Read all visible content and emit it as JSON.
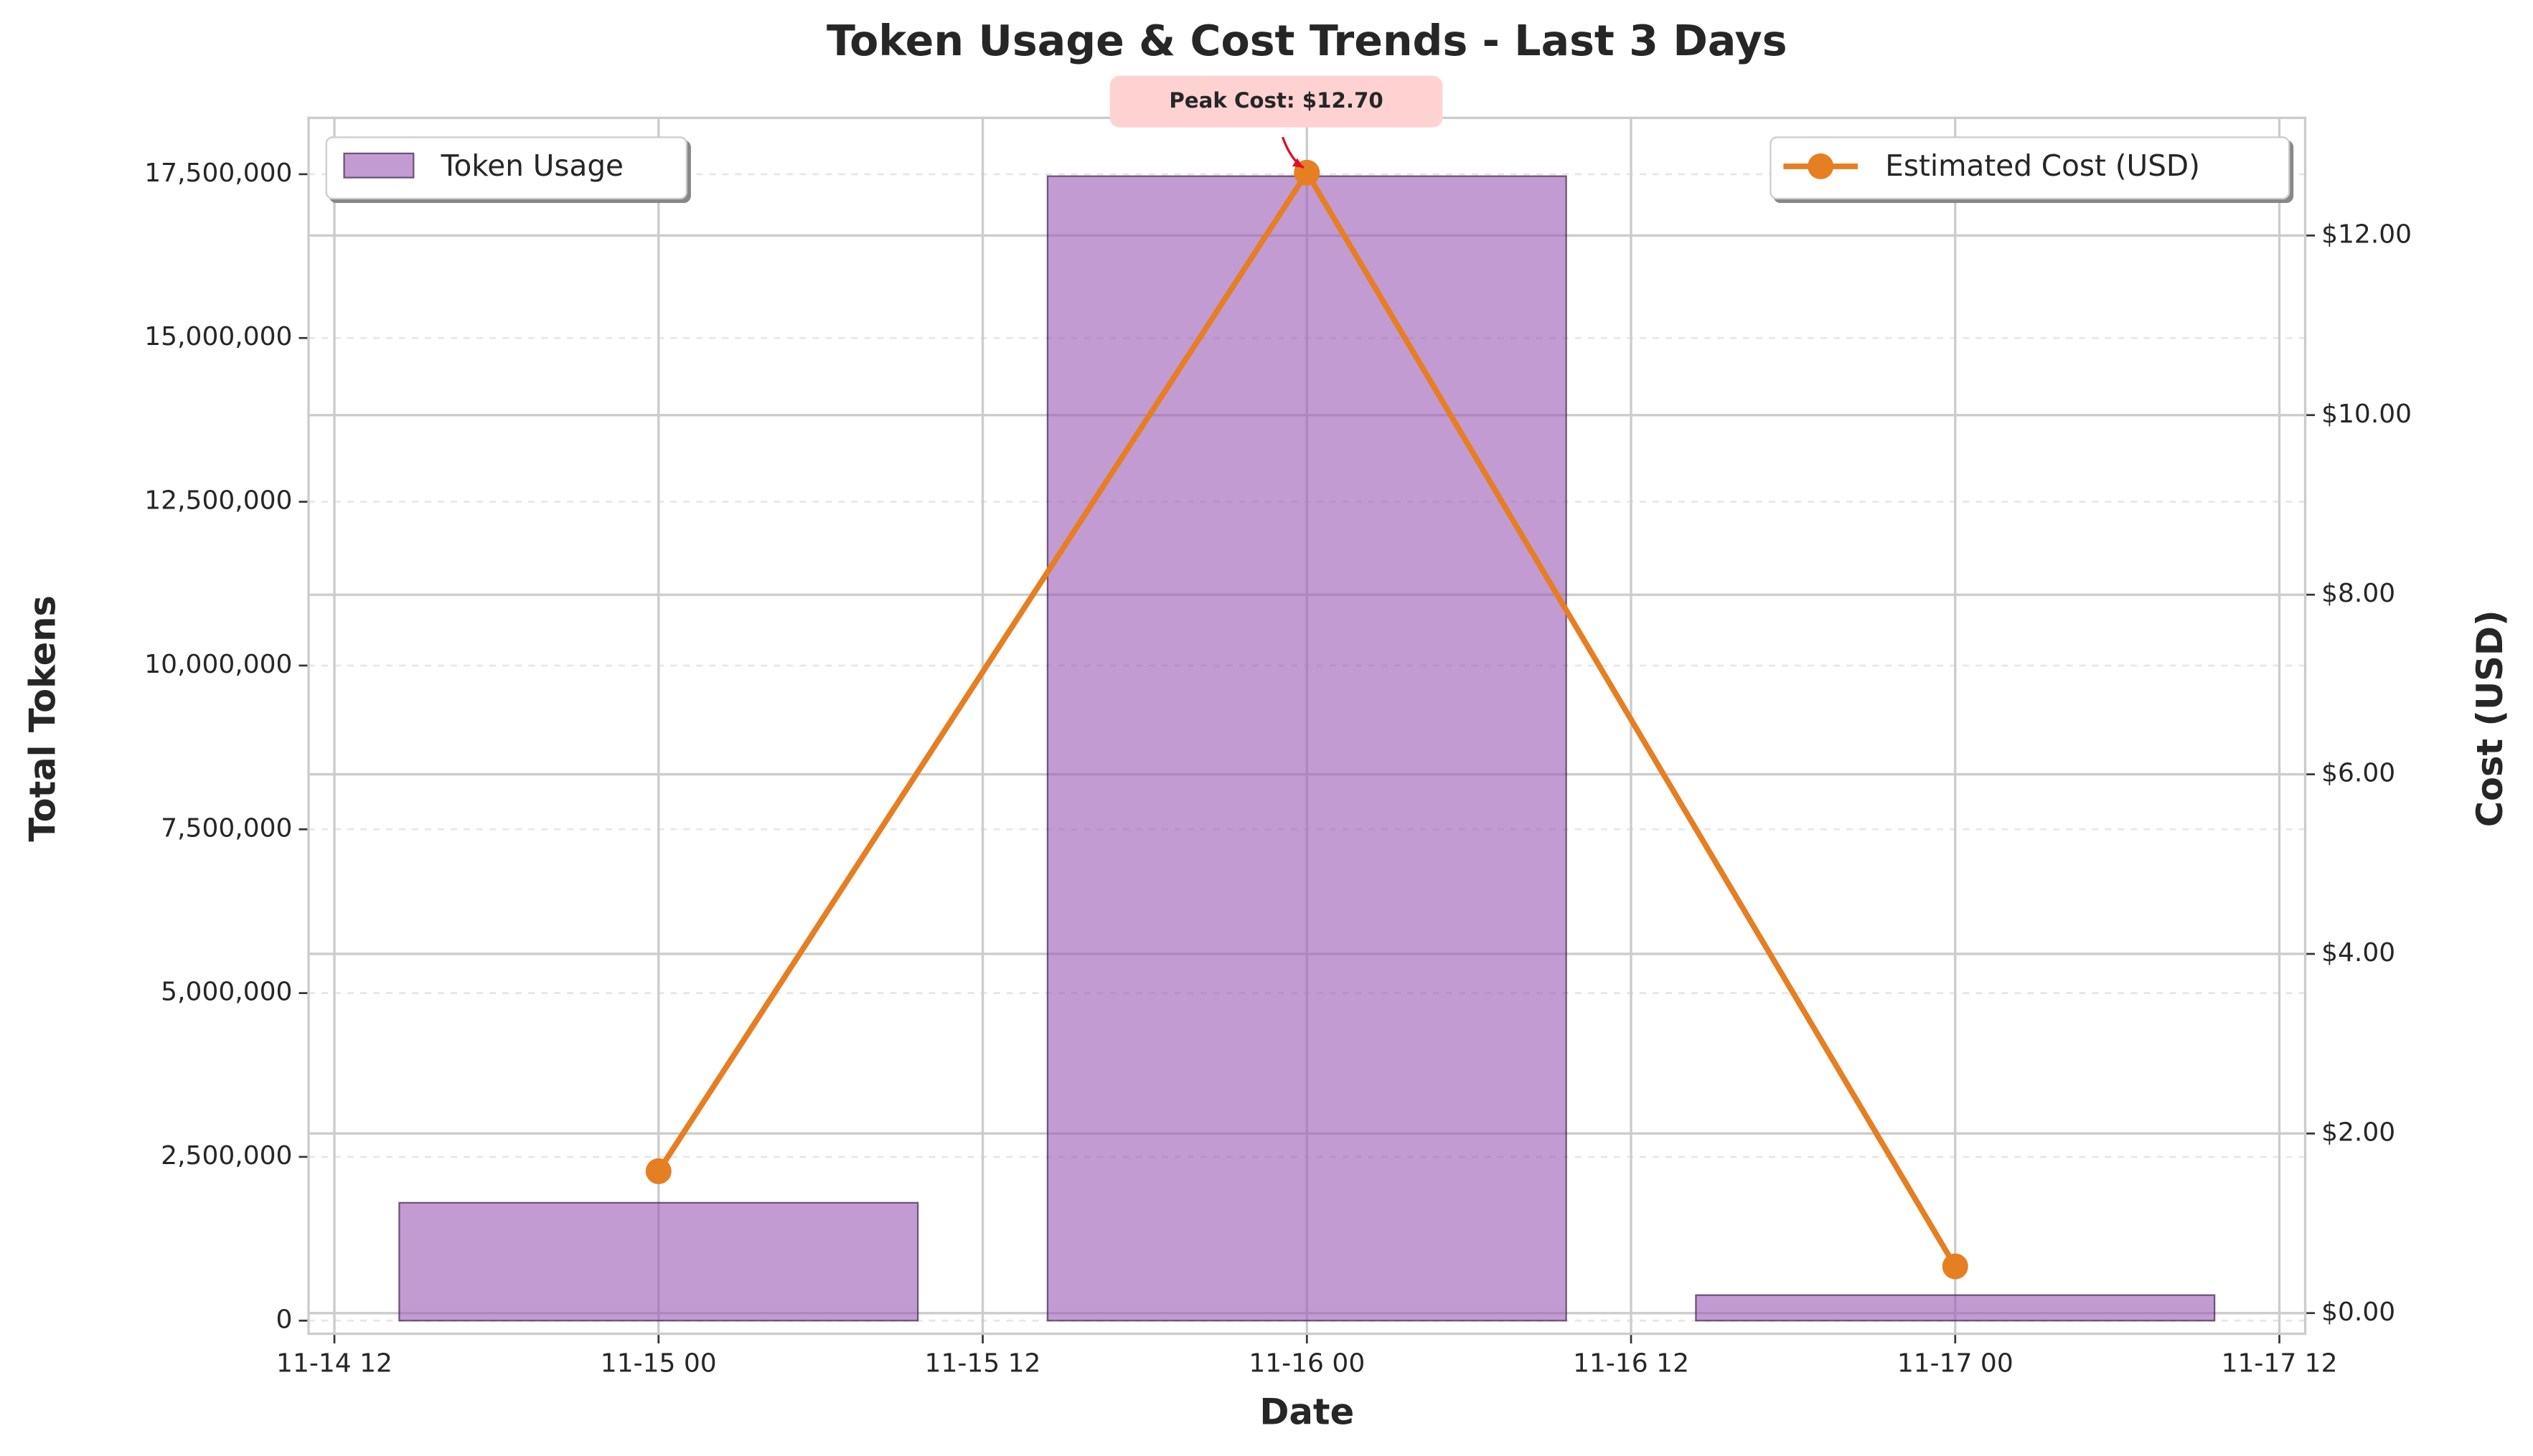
{
  "chart_data": {
    "type": "bar-line",
    "title": "Token Usage & Cost Trends - Last 3 Days",
    "xlabel": "Date",
    "ylabel": "Total Tokens",
    "y2label": "Cost (USD)",
    "x": [
      "11-15 00",
      "11-16 00",
      "11-17 00"
    ],
    "xlim": [
      "11-14 12",
      "11-17 12"
    ],
    "xticks": [
      "11-14 12",
      "11-15 00",
      "11-15 12",
      "11-16 00",
      "11-16 12",
      "11-17 00",
      "11-17 12"
    ],
    "ylim": [
      -200000,
      18360000
    ],
    "yticks": [
      {
        "value": 0,
        "label": "0"
      },
      {
        "value": 2500000,
        "label": "2,500,000"
      },
      {
        "value": 5000000,
        "label": "5,000,000"
      },
      {
        "value": 7500000,
        "label": "7,500,000"
      },
      {
        "value": 10000000,
        "label": "10,000,000"
      },
      {
        "value": 12500000,
        "label": "12,500,000"
      },
      {
        "value": 15000000,
        "label": "15,000,000"
      },
      {
        "value": 17500000,
        "label": "17,500,000"
      }
    ],
    "y2lim": [
      -0.23,
      13.31
    ],
    "y2ticks": [
      {
        "value": 0,
        "label": "$0.00"
      },
      {
        "value": 2,
        "label": "$2.00"
      },
      {
        "value": 4,
        "label": "$4.00"
      },
      {
        "value": 6,
        "label": "$6.00"
      },
      {
        "value": 8,
        "label": "$8.00"
      },
      {
        "value": 10,
        "label": "$10.00"
      },
      {
        "value": 12,
        "label": "$12.00"
      }
    ],
    "series": [
      {
        "name": "Token Usage",
        "type": "bar",
        "color": "#9b59b6",
        "values": [
          1800000,
          17470000,
          390000
        ],
        "legend": "upper left"
      },
      {
        "name": "Estimated Cost (USD)",
        "type": "line",
        "axis": "y2",
        "color": "#e67e22",
        "values": [
          1.58,
          12.7,
          0.52
        ],
        "legend": "upper right"
      }
    ],
    "annotation": "Peak Cost: $12.70",
    "grid": true
  }
}
